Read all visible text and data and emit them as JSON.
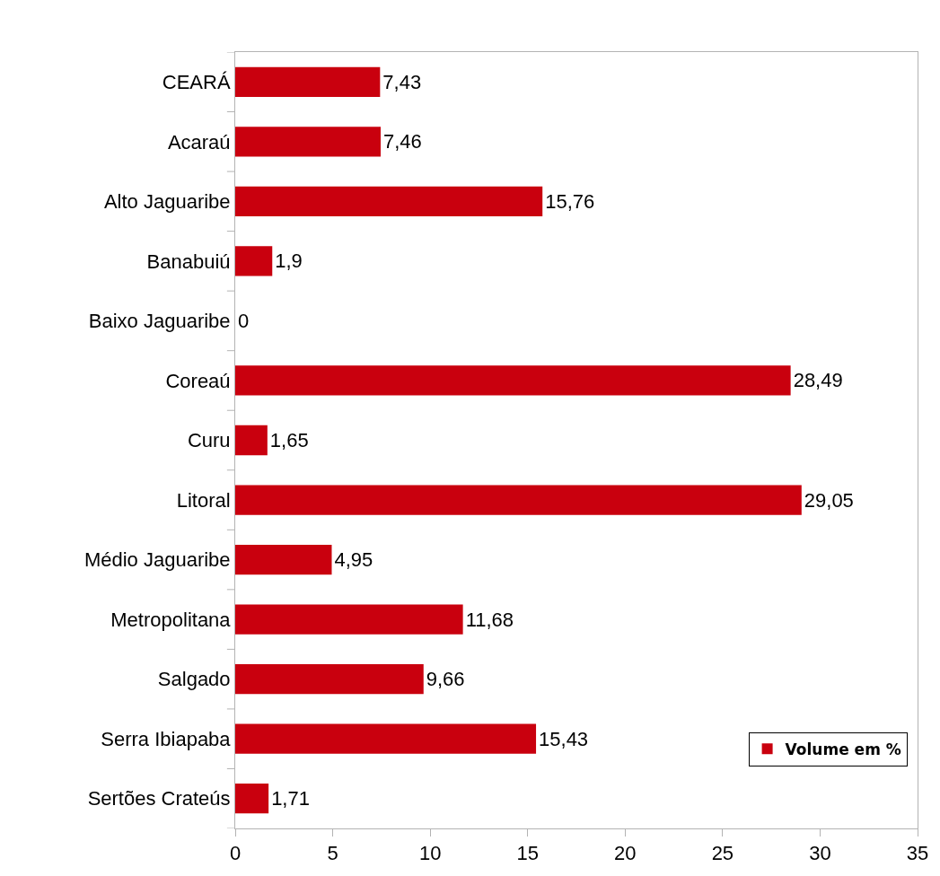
{
  "chart_data": {
    "type": "bar",
    "orientation": "horizontal",
    "categories": [
      "CEARÁ",
      "Acaraú",
      "Alto Jaguaribe",
      "Banabuiú",
      "Baixo Jaguaribe",
      "Coreaú",
      "Curu",
      "Litoral",
      "Médio Jaguaribe",
      "Metropolitana",
      "Salgado",
      "Serra Ibiapaba",
      "Sertões Crateús"
    ],
    "series": [
      {
        "name": "Volume em %",
        "color": "#c9000e",
        "values": [
          7.43,
          7.46,
          15.76,
          1.9,
          0,
          28.49,
          1.65,
          29.05,
          4.95,
          11.68,
          9.66,
          15.43,
          1.71
        ],
        "value_labels": [
          "7,43",
          "7,46",
          "15,76",
          "1,9",
          "0",
          "28,49",
          "1,65",
          "29,05",
          "4,95",
          "11,68",
          "9,66",
          "15,43",
          "1,71"
        ]
      }
    ],
    "xlim": [
      0,
      35
    ],
    "xticks": [
      0,
      5,
      10,
      15,
      20,
      25,
      30,
      35
    ],
    "grid": false,
    "legend": "bottom right"
  }
}
